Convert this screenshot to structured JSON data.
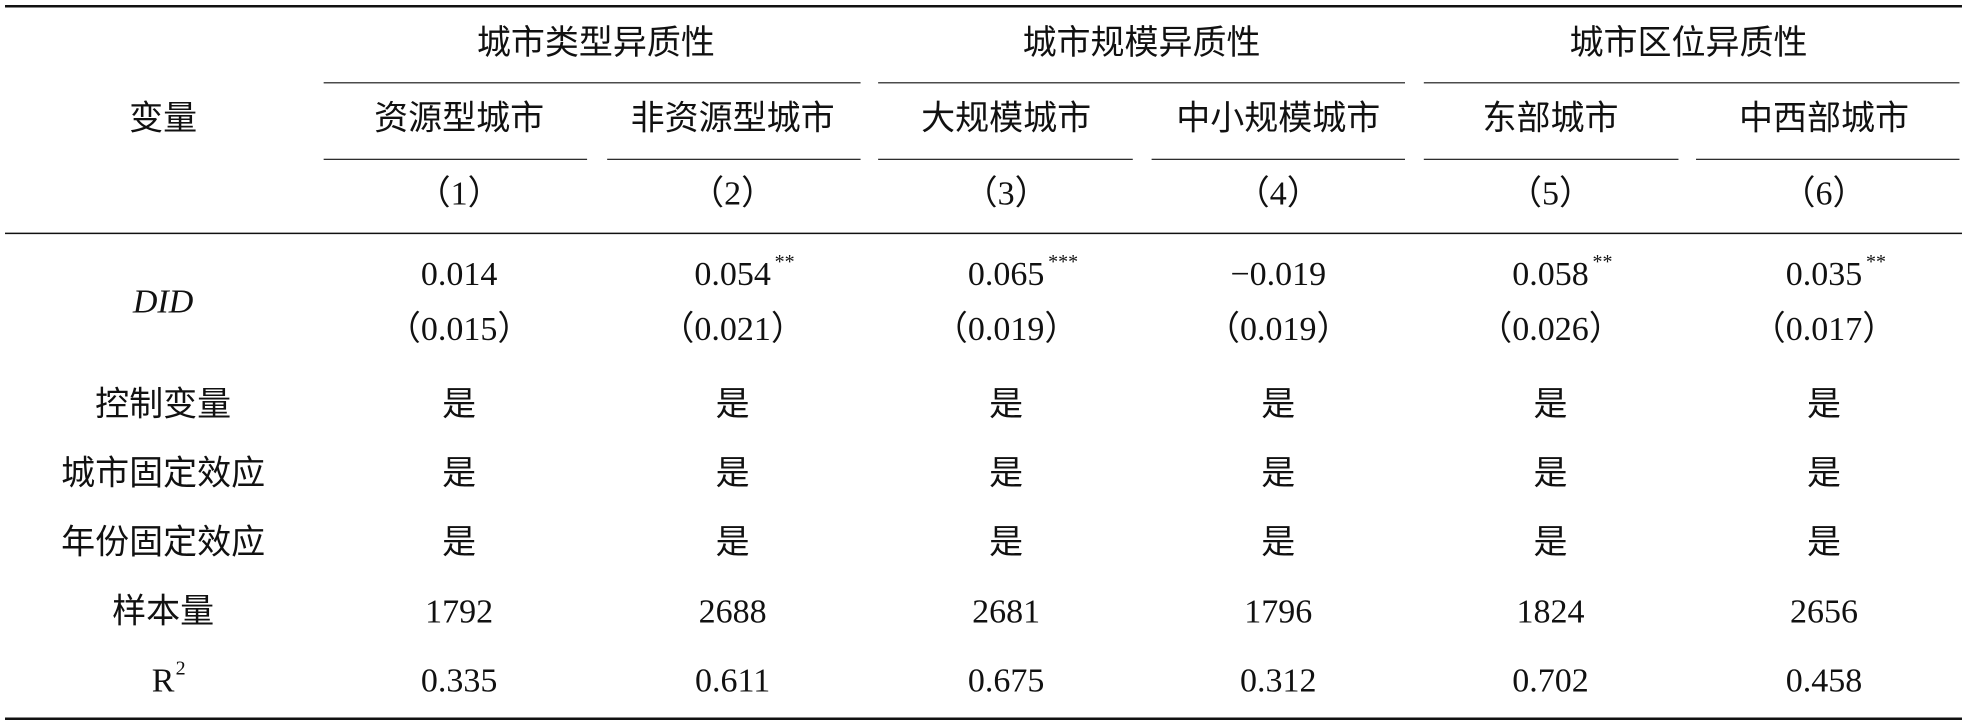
{
  "table": {
    "header": {
      "variable": "变量",
      "groups": [
        "城市类型异质性",
        "城市规模异质性",
        "城市区位异质性"
      ],
      "columns": [
        "资源型城市",
        "非资源型城市",
        "大规模城市",
        "中小规模城市",
        "东部城市",
        "中西部城市"
      ],
      "numbers": [
        "（1）",
        "（2）",
        "（3）",
        "（4）",
        "（5）",
        "（6）"
      ]
    },
    "rows": [
      {
        "label": "DID",
        "cells": [
          {
            "coef": "0.014",
            "se": "（0.015）"
          },
          {
            "coef": "0.054",
            "stars": "**",
            "se": "（0.021）"
          },
          {
            "coef": "0.065",
            "stars": "***",
            "se": "（0.019）"
          },
          {
            "coef": "−0.019",
            "se": "（0.019）"
          },
          {
            "coef": "0.058",
            "stars": "**",
            "se": "（0.026）"
          },
          {
            "coef": "0.035",
            "stars": "**",
            "se": "（0.017）"
          }
        ]
      },
      {
        "label": "控制变量",
        "cells": [
          "是",
          "是",
          "是",
          "是",
          "是",
          "是"
        ]
      },
      {
        "label": "城市固定效应",
        "cells": [
          "是",
          "是",
          "是",
          "是",
          "是",
          "是"
        ]
      },
      {
        "label": "年份固定效应",
        "cells": [
          "是",
          "是",
          "是",
          "是",
          "是",
          "是"
        ]
      },
      {
        "label": "样本量",
        "cells": [
          1792,
          2688,
          2681,
          1796,
          1824,
          2656
        ]
      },
      {
        "label": "R",
        "label_sup": "2",
        "cells": [
          0.335,
          0.611,
          0.675,
          0.312,
          0.702,
          0.458
        ]
      }
    ]
  }
}
